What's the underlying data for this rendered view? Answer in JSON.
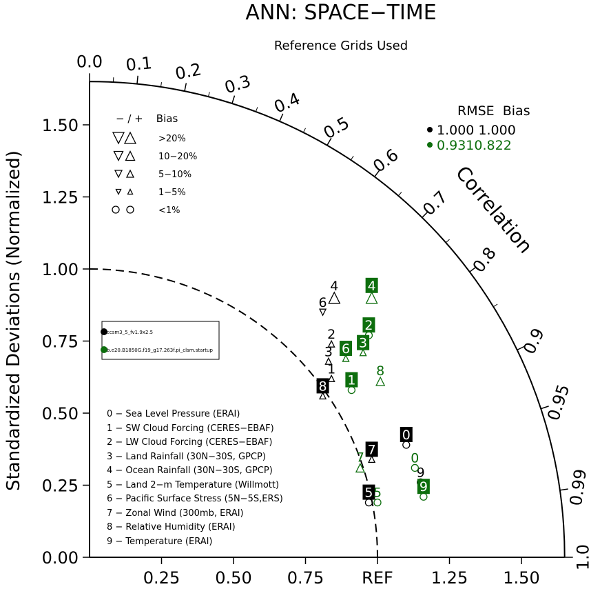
{
  "colors": {
    "model1": "#000000",
    "model2": "#0d6e0d",
    "axis": "#000000",
    "background": "#ffffff"
  },
  "chart_data": {
    "type": "scatter",
    "title": "ANN: SPACE−TIME",
    "subtitle": "Reference Grids Used",
    "ylabel": "Standardized Deviations (Normalized)",
    "correlation_label": "Correlation",
    "ref_label": "REF",
    "xlim": [
      0,
      1.65
    ],
    "ylim": [
      0,
      1.65
    ],
    "x_tick_labels": [
      "0.25",
      "0.50",
      "0.75",
      "REF",
      "1.25",
      "1.50"
    ],
    "y_tick_labels": [
      "0.00",
      "0.25",
      "0.50",
      "0.75",
      "1.00",
      "1.25",
      "1.50"
    ],
    "correlation_ticks": [
      {
        "r": 0.0,
        "label": "0.0"
      },
      {
        "r": 0.1,
        "label": "0.1"
      },
      {
        "r": 0.2,
        "label": "0.2"
      },
      {
        "r": 0.3,
        "label": "0.3"
      },
      {
        "r": 0.4,
        "label": "0.4"
      },
      {
        "r": 0.5,
        "label": "0.5"
      },
      {
        "r": 0.6,
        "label": "0.6"
      },
      {
        "r": 0.7,
        "label": "0.7"
      },
      {
        "r": 0.8,
        "label": "0.8"
      },
      {
        "r": 0.9,
        "label": "0.9"
      },
      {
        "r": 0.95,
        "label": "0.95"
      },
      {
        "r": 0.99,
        "label": "0.99"
      },
      {
        "r": 1.0,
        "label": "1.0"
      }
    ],
    "bias_legend": {
      "header": "− / +    Bias",
      "rows": [
        {
          "label": ">20%",
          "shape": "triangle",
          "size": 16
        },
        {
          "label": "10−20%",
          "shape": "triangle",
          "size": 13
        },
        {
          "label": "5−10%",
          "shape": "triangle",
          "size": 10
        },
        {
          "label": "1−5%",
          "shape": "triangle",
          "size": 7
        },
        {
          "label": "<1%",
          "shape": "circle",
          "size": 10
        }
      ]
    },
    "rmse_legend": {
      "header": "RMSE  Bias",
      "rows": [
        {
          "color": "#000000",
          "text": "1.000 1.000"
        },
        {
          "color": "#0d6e0d",
          "text": "0.9310.822"
        }
      ]
    },
    "model_legend": [
      "ccsm3_5_fv1.9x2.5",
      "b.e20.B1850G.f19_g17.263f.pi_clsm.startup"
    ],
    "variables": [
      "0 − Sea Level Pressure (ERAI)",
      "1 − SW Cloud Forcing (CERES−EBAF)",
      "2 − LW Cloud Forcing (CERES−EBAF)",
      "3 − Land Rainfall (30N−30S, GPCP)",
      "4 − Ocean Rainfall (30N−30S, GPCP)",
      "5 − Land 2−m Temperature (Willmott)",
      "6 − Pacific Surface Stress (5N−5S,ERS)",
      "7 − Zonal Wind (300mb, ERAI)",
      "8 − Relative Humidity (ERAI)",
      "9 − Temperature (ERAI)"
    ],
    "series": [
      {
        "name": "ccsm3_5_fv1.9x2.5",
        "color": "#000000",
        "boxed_labels": [
          "0",
          "5",
          "7",
          "8"
        ],
        "points": [
          {
            "id": "0",
            "x": 1.1,
            "y": 0.39,
            "bias": "circle"
          },
          {
            "id": "1",
            "x": 0.84,
            "y": 0.62,
            "bias": "up-small"
          },
          {
            "id": "2",
            "x": 0.84,
            "y": 0.74,
            "bias": "up-small"
          },
          {
            "id": "3",
            "x": 0.83,
            "y": 0.68,
            "bias": "up-small"
          },
          {
            "id": "4",
            "x": 0.85,
            "y": 0.9,
            "bias": "up-large"
          },
          {
            "id": "5",
            "x": 0.97,
            "y": 0.19,
            "bias": "circle"
          },
          {
            "id": "6",
            "x": 0.81,
            "y": 0.85,
            "bias": "down-small"
          },
          {
            "id": "7",
            "x": 0.98,
            "y": 0.34,
            "bias": "up-small"
          },
          {
            "id": "8",
            "x": 0.81,
            "y": 0.56,
            "bias": "up-small"
          },
          {
            "id": "9",
            "x": 1.15,
            "y": 0.26,
            "bias": "circle"
          }
        ]
      },
      {
        "name": "b.e20.B1850G.f19_g17.263f.pi_clsm.startup",
        "color": "#0d6e0d",
        "boxed_labels": [
          "1",
          "2",
          "3",
          "4",
          "6",
          "9"
        ],
        "points": [
          {
            "id": "0",
            "x": 1.13,
            "y": 0.31,
            "bias": "circle"
          },
          {
            "id": "1",
            "x": 0.91,
            "y": 0.58,
            "bias": "circle"
          },
          {
            "id": "2",
            "x": 0.97,
            "y": 0.77,
            "bias": "circle"
          },
          {
            "id": "3",
            "x": 0.95,
            "y": 0.71,
            "bias": "up-small"
          },
          {
            "id": "4",
            "x": 0.98,
            "y": 0.9,
            "bias": "up-large"
          },
          {
            "id": "5",
            "x": 1.0,
            "y": 0.19,
            "bias": "circle"
          },
          {
            "id": "6",
            "x": 0.89,
            "y": 0.69,
            "bias": "up-small"
          },
          {
            "id": "7",
            "x": 0.94,
            "y": 0.31,
            "bias": "up-medium"
          },
          {
            "id": "8",
            "x": 1.01,
            "y": 0.61,
            "bias": "up-medium"
          },
          {
            "id": "9",
            "x": 1.16,
            "y": 0.21,
            "bias": "circle"
          }
        ]
      }
    ]
  }
}
